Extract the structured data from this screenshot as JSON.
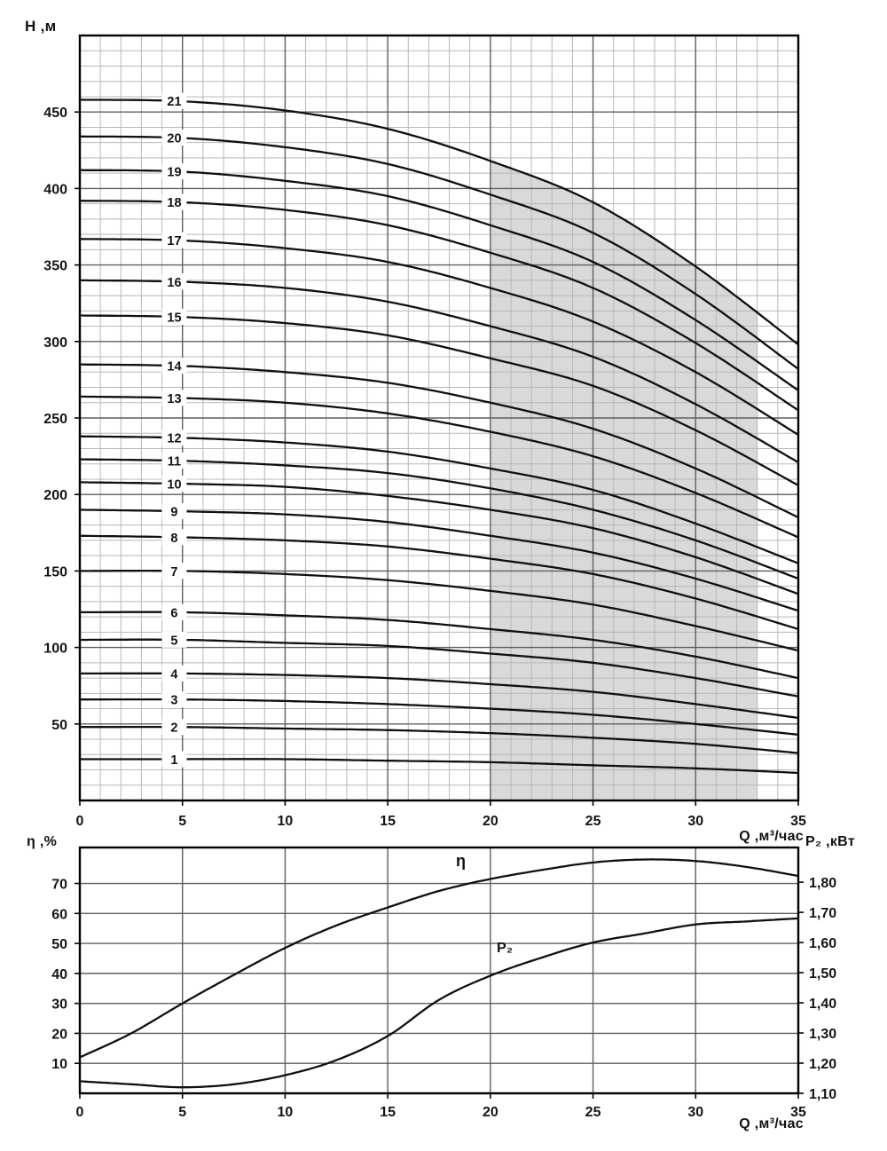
{
  "page": {
    "background": "#ffffff",
    "curve_color": "#101010",
    "grid_minor_color": "#b8b8b8",
    "grid_major_color": "#5f5f5f",
    "frame_color": "#000000",
    "shade_color": "#d9d9d9"
  },
  "chart_data": [
    {
      "type": "line",
      "name": "pump-head-curves",
      "title": "",
      "xlabel": "Q ,м³/час",
      "ylabel": "Н ,м",
      "xlim": [
        0,
        35
      ],
      "ylim": [
        0,
        500
      ],
      "x_ticks": [
        0,
        5,
        10,
        15,
        20,
        25,
        30,
        35
      ],
      "y_ticks": [
        50,
        100,
        150,
        200,
        250,
        300,
        350,
        400,
        450
      ],
      "x_minor_step": 1,
      "y_minor_step": 10,
      "grid": true,
      "recommended_range": {
        "q_from": 20,
        "q_to": 33
      },
      "series_label_q": 4.6,
      "x": [
        0,
        5,
        10,
        15,
        20,
        25,
        30,
        35
      ],
      "series": [
        {
          "name": "1",
          "values": [
            27,
            27,
            27,
            26,
            25,
            23,
            21,
            18
          ]
        },
        {
          "name": "2",
          "values": [
            48,
            48,
            47,
            46,
            44,
            41,
            37,
            31
          ]
        },
        {
          "name": "3",
          "values": [
            66,
            66,
            65,
            63,
            60,
            56,
            50,
            43
          ]
        },
        {
          "name": "4",
          "values": [
            83,
            83,
            82,
            80,
            76,
            71,
            63,
            54
          ]
        },
        {
          "name": "5",
          "values": [
            105,
            105,
            103,
            101,
            96,
            90,
            80,
            68
          ]
        },
        {
          "name": "6",
          "values": [
            123,
            123,
            121,
            118,
            112,
            105,
            94,
            80
          ]
        },
        {
          "name": "7",
          "values": [
            150,
            150,
            148,
            144,
            137,
            128,
            114,
            98
          ]
        },
        {
          "name": "8",
          "values": [
            173,
            172,
            170,
            166,
            158,
            148,
            132,
            112
          ]
        },
        {
          "name": "9",
          "values": [
            190,
            189,
            187,
            182,
            173,
            162,
            145,
            124
          ]
        },
        {
          "name": "10",
          "values": [
            208,
            207,
            205,
            199,
            190,
            178,
            159,
            135
          ]
        },
        {
          "name": "11",
          "values": [
            223,
            222,
            219,
            214,
            204,
            190,
            170,
            145
          ]
        },
        {
          "name": "12",
          "values": [
            238,
            237,
            234,
            228,
            217,
            203,
            181,
            155
          ]
        },
        {
          "name": "13",
          "values": [
            264,
            263,
            260,
            253,
            241,
            225,
            201,
            172
          ]
        },
        {
          "name": "14",
          "values": [
            285,
            284,
            280,
            273,
            260,
            243,
            217,
            185
          ]
        },
        {
          "name": "15",
          "values": [
            317,
            316,
            312,
            304,
            289,
            271,
            242,
            206
          ]
        },
        {
          "name": "16",
          "values": [
            340,
            339,
            335,
            326,
            310,
            290,
            259,
            221
          ]
        },
        {
          "name": "17",
          "values": [
            367,
            366,
            361,
            352,
            335,
            313,
            280,
            239
          ]
        },
        {
          "name": "18",
          "values": [
            392,
            391,
            386,
            376,
            358,
            335,
            299,
            255
          ]
        },
        {
          "name": "19",
          "values": [
            412,
            411,
            405,
            395,
            376,
            352,
            314,
            268
          ]
        },
        {
          "name": "20",
          "values": [
            434,
            433,
            427,
            416,
            396,
            371,
            331,
            282
          ]
        },
        {
          "name": "21",
          "values": [
            458,
            457,
            451,
            439,
            418,
            391,
            349,
            298
          ]
        }
      ]
    },
    {
      "type": "line",
      "name": "efficiency-and-power-curves",
      "xlabel": "Q ,м³/час",
      "ylabel_left": "η ,%",
      "ylabel_right": "P₂ ,кВт",
      "xlim": [
        0,
        35
      ],
      "x_ticks": [
        0,
        5,
        10,
        15,
        20,
        25,
        30,
        35
      ],
      "left_ylim": [
        0,
        82
      ],
      "left_ticks": [
        10,
        20,
        30,
        40,
        50,
        60,
        70
      ],
      "right_ylim": [
        1.1,
        1.915
      ],
      "right_ticks": [
        1.1,
        1.2,
        1.3,
        1.4,
        1.5,
        1.6,
        1.7,
        1.8
      ],
      "right_tick_labels": [
        "1,10",
        "1,20",
        "1,30",
        "1,40",
        "1,50",
        "1,60",
        "1,70",
        "1,80"
      ],
      "x": [
        0,
        2.5,
        5,
        7.5,
        10,
        12.5,
        15,
        17.5,
        20,
        22.5,
        25,
        27.5,
        30,
        32.5,
        35
      ],
      "eta_label": "η",
      "p2_label": "P₂",
      "series": [
        {
          "name": "eta",
          "axis": "left",
          "values": [
            12,
            20,
            30,
            39.5,
            48.5,
            56,
            62,
            67.5,
            71.5,
            74.5,
            77,
            78,
            77.5,
            75.5,
            72.5
          ]
        },
        {
          "name": "p2",
          "axis": "right",
          "values": [
            1.14,
            1.13,
            1.12,
            1.13,
            1.16,
            1.21,
            1.29,
            1.41,
            1.49,
            1.55,
            1.6,
            1.63,
            1.66,
            1.67,
            1.68
          ]
        }
      ]
    }
  ]
}
